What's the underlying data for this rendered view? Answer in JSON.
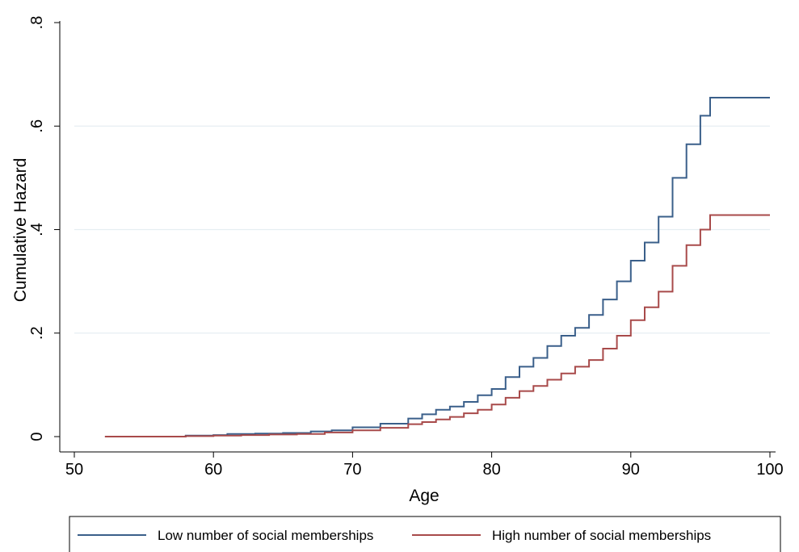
{
  "chart_data": {
    "type": "line",
    "xlabel": "Age",
    "ylabel": "Cumulative Hazard",
    "xlim": [
      50,
      100
    ],
    "ylim": [
      0,
      0.8
    ],
    "x_ticks": [
      50,
      60,
      70,
      80,
      90,
      100
    ],
    "x_tick_labels": [
      "50",
      "60",
      "70",
      "80",
      "90",
      "100"
    ],
    "y_ticks": [
      0,
      0.2,
      0.4,
      0.6,
      0.8
    ],
    "y_tick_labels": [
      "0",
      ".2",
      ".4",
      ".6",
      ".8"
    ],
    "grid": true,
    "legend_position": "bottom",
    "series": [
      {
        "name": "Low number of social memberships",
        "color": "#3a5f8a",
        "points": [
          [
            52.2,
            0.0
          ],
          [
            55,
            0.0
          ],
          [
            58,
            0.002
          ],
          [
            60,
            0.003
          ],
          [
            61,
            0.005
          ],
          [
            63,
            0.006
          ],
          [
            65,
            0.007
          ],
          [
            67,
            0.01
          ],
          [
            68.5,
            0.012
          ],
          [
            70,
            0.018
          ],
          [
            72,
            0.025
          ],
          [
            74,
            0.035
          ],
          [
            75,
            0.043
          ],
          [
            76,
            0.052
          ],
          [
            77,
            0.058
          ],
          [
            78,
            0.067
          ],
          [
            79,
            0.08
          ],
          [
            80,
            0.092
          ],
          [
            81,
            0.115
          ],
          [
            82,
            0.135
          ],
          [
            83,
            0.152
          ],
          [
            84,
            0.175
          ],
          [
            85,
            0.195
          ],
          [
            86,
            0.21
          ],
          [
            87,
            0.235
          ],
          [
            88,
            0.265
          ],
          [
            89,
            0.3
          ],
          [
            90,
            0.34
          ],
          [
            91,
            0.375
          ],
          [
            92,
            0.425
          ],
          [
            93,
            0.5
          ],
          [
            94,
            0.565
          ],
          [
            95,
            0.62
          ],
          [
            95.7,
            0.655
          ],
          [
            100,
            0.655
          ]
        ]
      },
      {
        "name": "High number of social memberships",
        "color": "#a84a4a",
        "points": [
          [
            52.2,
            0.0
          ],
          [
            55,
            0.0
          ],
          [
            58,
            0.001
          ],
          [
            60,
            0.002
          ],
          [
            62,
            0.003
          ],
          [
            64,
            0.004
          ],
          [
            66,
            0.005
          ],
          [
            68,
            0.008
          ],
          [
            70,
            0.012
          ],
          [
            72,
            0.017
          ],
          [
            74,
            0.024
          ],
          [
            75,
            0.028
          ],
          [
            76,
            0.033
          ],
          [
            77,
            0.038
          ],
          [
            78,
            0.045
          ],
          [
            79,
            0.052
          ],
          [
            80,
            0.062
          ],
          [
            81,
            0.075
          ],
          [
            82,
            0.088
          ],
          [
            83,
            0.098
          ],
          [
            84,
            0.11
          ],
          [
            85,
            0.122
          ],
          [
            86,
            0.135
          ],
          [
            87,
            0.148
          ],
          [
            88,
            0.17
          ],
          [
            89,
            0.195
          ],
          [
            90,
            0.225
          ],
          [
            91,
            0.25
          ],
          [
            92,
            0.28
          ],
          [
            93,
            0.33
          ],
          [
            94,
            0.37
          ],
          [
            95,
            0.4
          ],
          [
            95.7,
            0.428
          ],
          [
            100,
            0.428
          ]
        ]
      }
    ]
  }
}
